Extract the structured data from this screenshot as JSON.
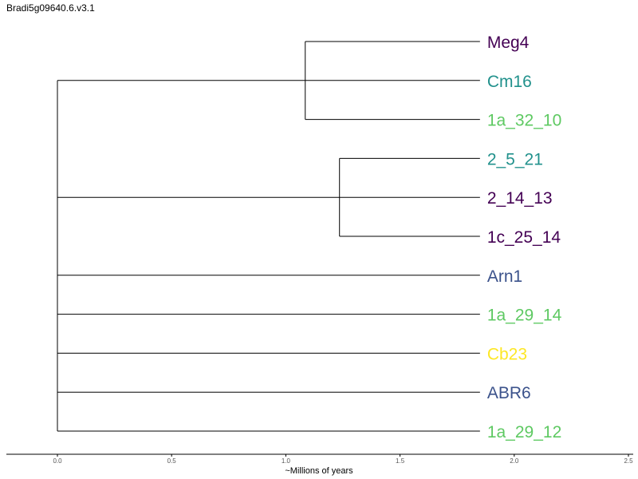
{
  "title": "Bradi5g09640.6.v3.1",
  "axis": {
    "label": "~Millions of years",
    "ticks": [
      "0.0",
      "0.5",
      "1.0",
      "1.5",
      "2.0",
      "2.5"
    ],
    "range": [
      0,
      2.5
    ]
  },
  "leaves": [
    {
      "name": "Meg4",
      "color": "#440154"
    },
    {
      "name": "Cm16",
      "color": "#21918c"
    },
    {
      "name": "1a_32_10",
      "color": "#5ec962"
    },
    {
      "name": "2_5_21",
      "color": "#21918c"
    },
    {
      "name": "2_14_13",
      "color": "#440154"
    },
    {
      "name": "1c_25_14",
      "color": "#440154"
    },
    {
      "name": "Arn1",
      "color": "#3b528b"
    },
    {
      "name": "1a_29_14",
      "color": "#5ec962"
    },
    {
      "name": "Cb23",
      "color": "#fde725"
    },
    {
      "name": "ABR6",
      "color": "#3b528b"
    },
    {
      "name": "1a_29_12",
      "color": "#5ec962"
    }
  ],
  "tree": {
    "root_children": [
      {
        "node_depth": 1.085,
        "leaves": [
          0,
          1,
          2
        ]
      },
      {
        "node_depth": 1.235,
        "leaves": [
          3,
          4,
          5
        ]
      },
      {
        "leaf": 6
      },
      {
        "leaf": 7
      },
      {
        "leaf": 8
      },
      {
        "leaf": 9
      },
      {
        "leaf": 10
      }
    ],
    "tip_depth": 1.85
  }
}
